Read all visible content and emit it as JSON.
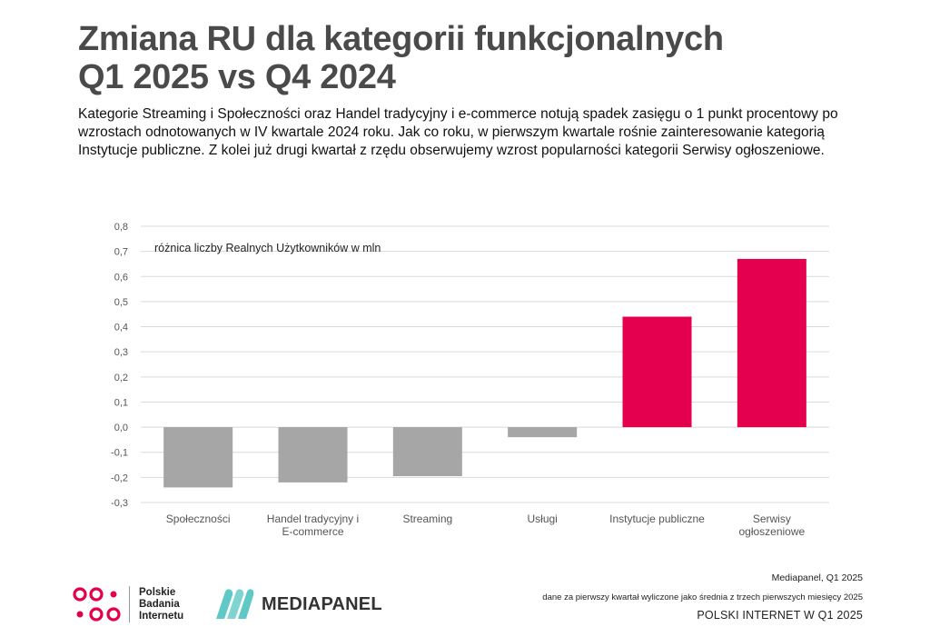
{
  "title_line1": "Zmiana RU dla kategorii funkcjonalnych",
  "title_line2": "Q1 2025 vs Q4 2024",
  "subtitle": "Kategorie Streaming i Społeczności oraz Handel tradycyjny i e-commerce notują spadek zasięgu o 1 punkt procentowy po wzrostach odnotowanych w IV kwartale 2024 roku. Jak co roku, w pierwszym kwartale rośnie zainteresowanie kategorią Instytucje publiczne. Z kolei już drugi kwartał z rzędu obserwujemy wzrost popularności kategorii Serwisy ogłoszeniowe.",
  "chart_data": {
    "type": "bar",
    "annotation": "różnica liczby Realnych Użytkowników w mln",
    "categories": [
      [
        "Społeczności"
      ],
      [
        "Handel tradycyjny i",
        "E-commerce"
      ],
      [
        "Streaming"
      ],
      [
        "Usługi"
      ],
      [
        "Instytucje publiczne"
      ],
      [
        "Serwisy",
        "ogłoszeniowe"
      ]
    ],
    "values": [
      -0.24,
      -0.22,
      -0.195,
      -0.04,
      0.44,
      0.67
    ],
    "colors": [
      "#a6a6a6",
      "#a6a6a6",
      "#a6a6a6",
      "#a6a6a6",
      "#e4004f",
      "#e4004f"
    ],
    "ylim": [
      -0.3,
      0.8
    ],
    "yticks": [
      "-0,3",
      "-0,2",
      "-0,1",
      "0,0",
      "0,1",
      "0,2",
      "0,3",
      "0,4",
      "0,5",
      "0,6",
      "0,7",
      "0,8"
    ],
    "ytick_values": [
      -0.3,
      -0.2,
      -0.1,
      0.0,
      0.1,
      0.2,
      0.3,
      0.4,
      0.5,
      0.6,
      0.7,
      0.8
    ],
    "grid": true
  },
  "footer": {
    "source": "Mediapanel, Q1 2025",
    "note": "dane za pierwszy kwartał wyliczone jako średnia z trzech pierwszych miesięcy 2025",
    "brand": "POLSKI INTERNET W Q1 2025"
  },
  "logos": {
    "pbi_lines": [
      "Polskie",
      "Badania",
      "Internetu"
    ],
    "pbi_color": "#e4004f",
    "mediapanel_name": "MEDIAPANEL",
    "mediapanel_color": "#5fc9c7"
  }
}
